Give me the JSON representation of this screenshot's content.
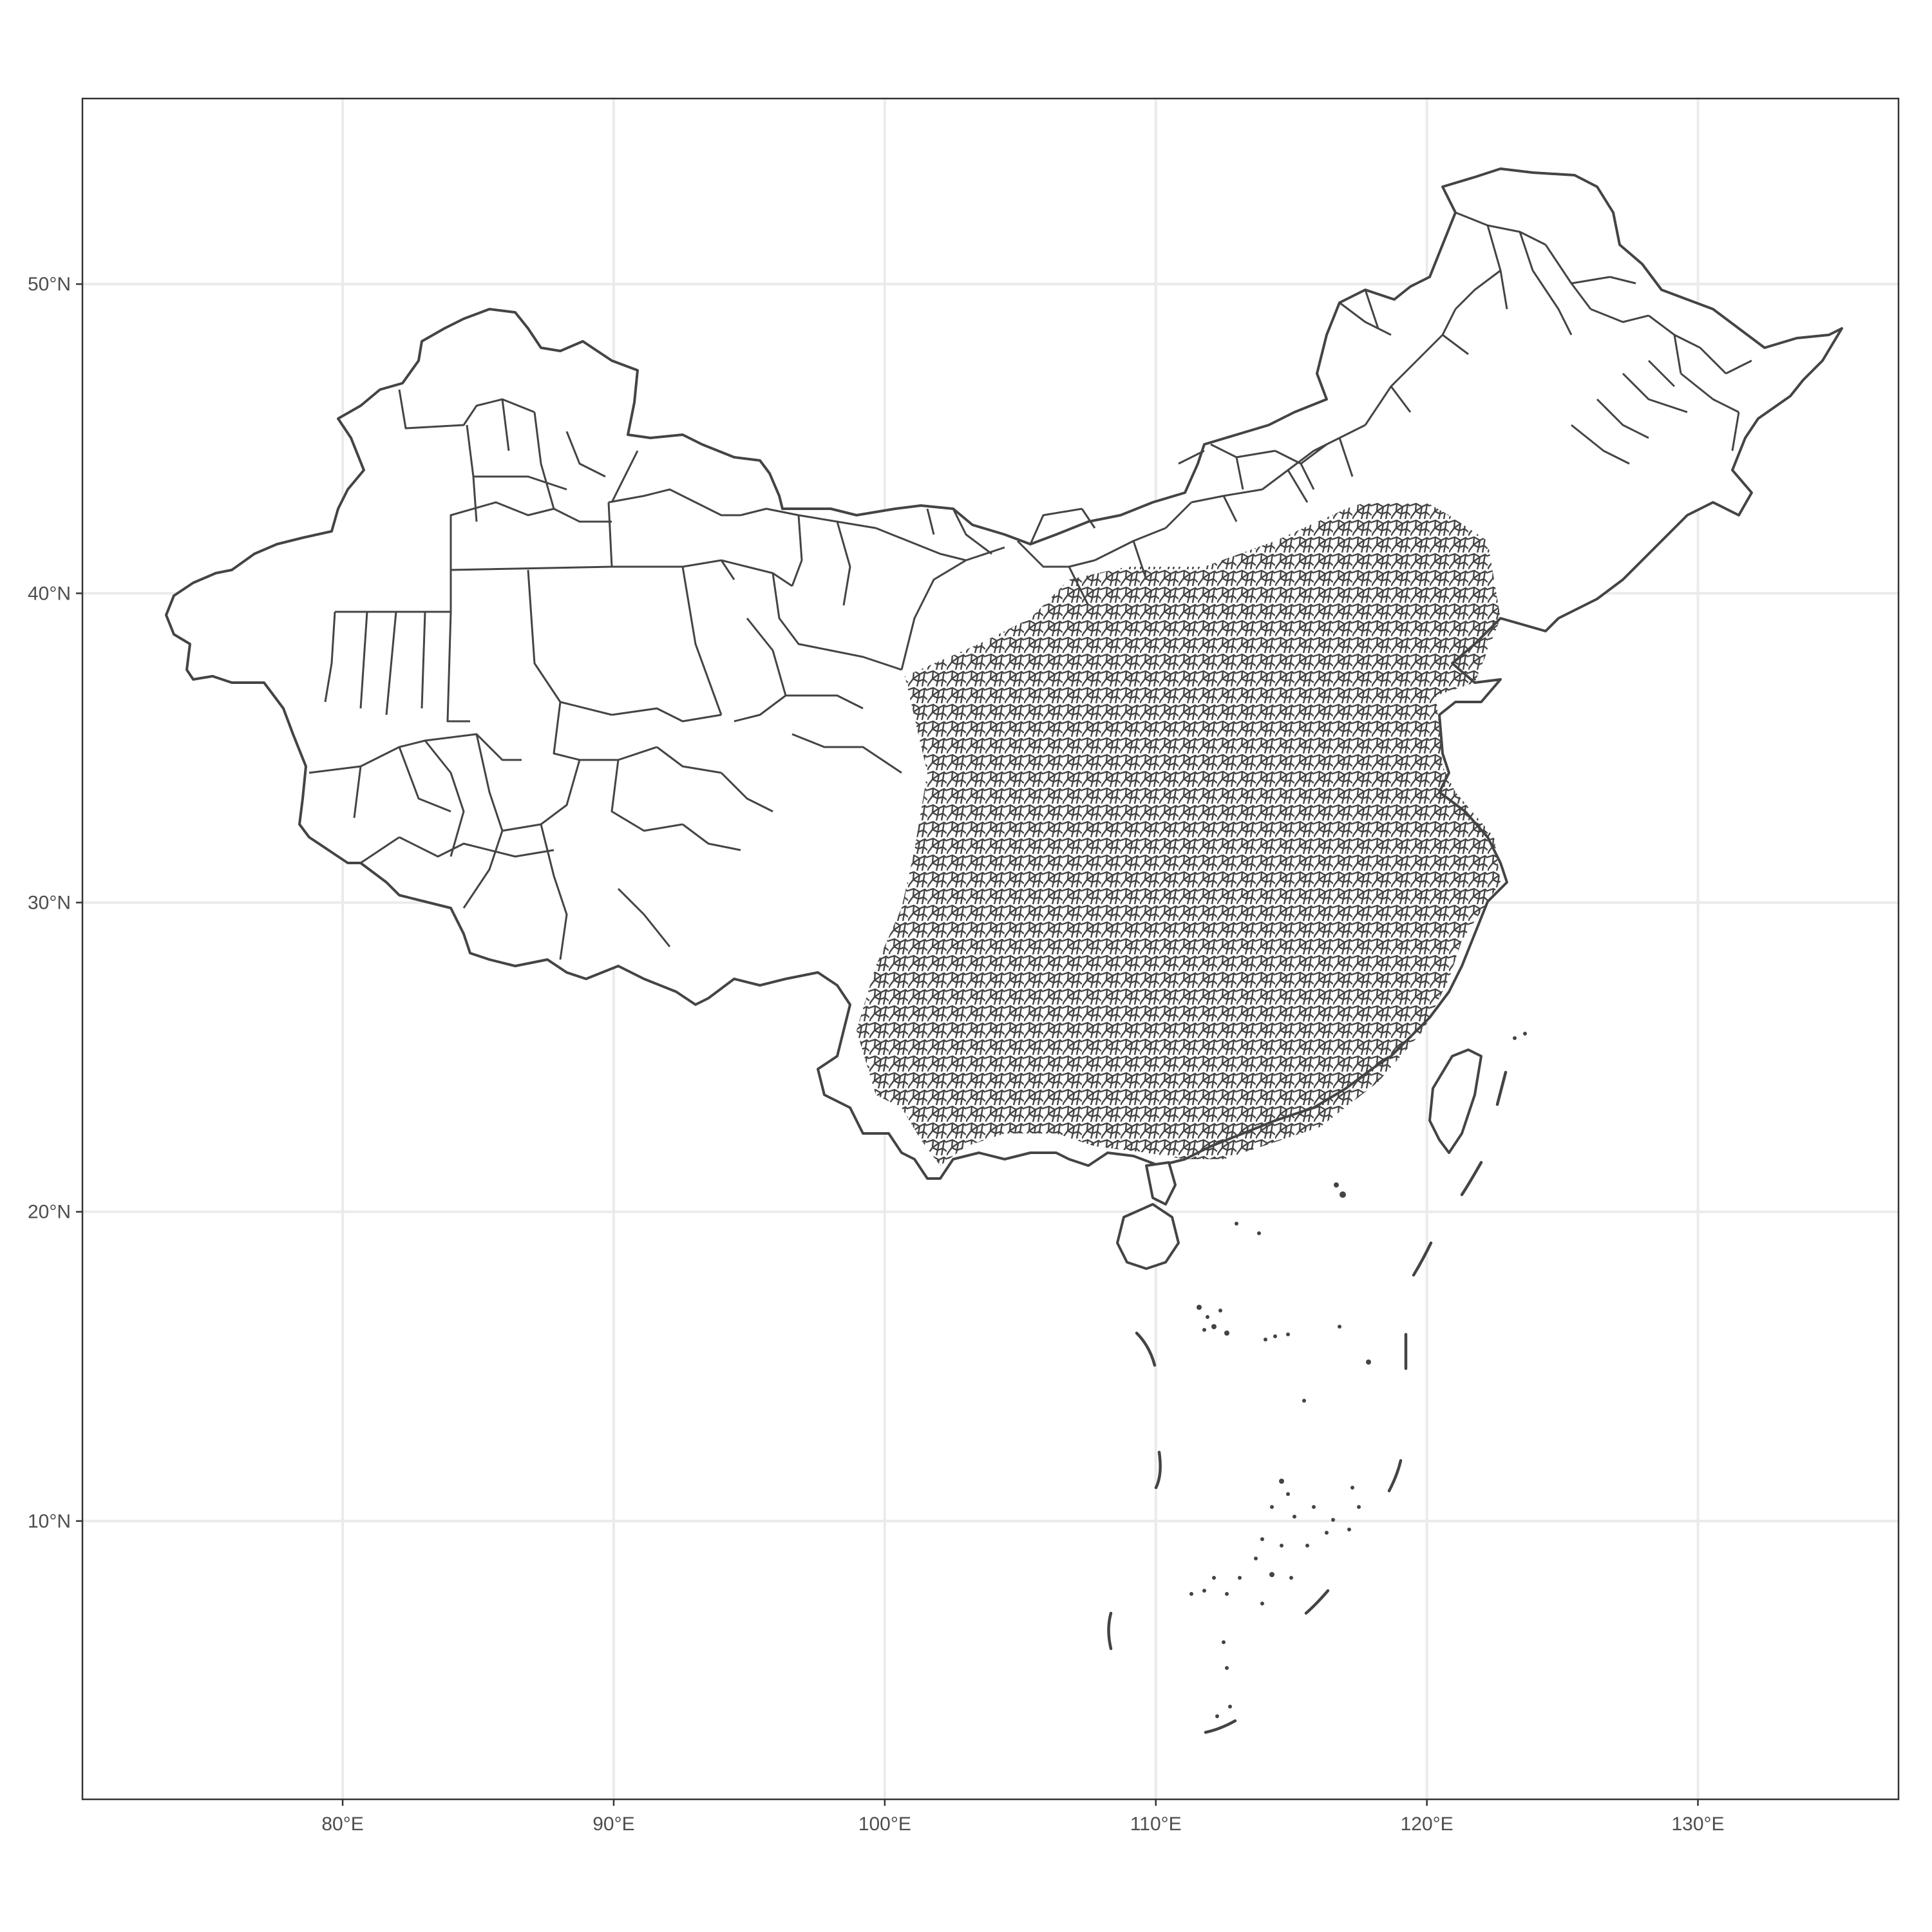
{
  "map": {
    "type": "choropleth-outline",
    "region": "China county-level administrative boundaries",
    "x_axis": {
      "ticks": [
        80,
        90,
        100,
        110,
        120,
        130
      ],
      "labels": [
        "80°E",
        "90°E",
        "100°E",
        "110°E",
        "120°E",
        "130°E"
      ],
      "range": [
        70.4,
        137.4
      ]
    },
    "y_axis": {
      "ticks": [
        10,
        20,
        30,
        40,
        50
      ],
      "labels": [
        "10°N",
        "20°N",
        "30°N",
        "40°N",
        "50°N"
      ],
      "range": [
        1.0,
        56.0
      ]
    },
    "colors": {
      "boundary": "#444444",
      "fill": "#ffffff",
      "grid": "#ebebeb",
      "panel_border": "#333333"
    }
  }
}
